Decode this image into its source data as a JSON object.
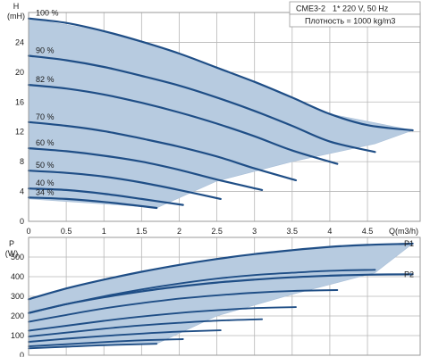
{
  "info": {
    "model": "CME3-2",
    "supply": "1* 220 V, 50 Hz",
    "density": "Плотность = 1000 kg/m3"
  },
  "colors": {
    "curve": "#1f4e86",
    "area": "#b7cbe0",
    "grid": "#b7b7b7"
  },
  "chart_data": [
    {
      "type": "line",
      "title": "",
      "ylabel": "H\n(mH)",
      "xlabel": "Q(m3/h)",
      "xlim": [
        0,
        5.2
      ],
      "ylim": [
        0,
        28
      ],
      "x_ticks": [
        "0",
        "0.5",
        "1",
        "1.5",
        "2",
        "2.5",
        "3",
        "3.5",
        "4",
        "4.5"
      ],
      "y_ticks": [
        "0",
        "4",
        "8",
        "12",
        "16",
        "20",
        "24"
      ],
      "grid": true,
      "series": [
        {
          "name": "100 %",
          "x": [
            0,
            0.5,
            1,
            1.5,
            2,
            2.5,
            3,
            3.5,
            4,
            4.5,
            5.1
          ],
          "y": [
            27.2,
            26.6,
            25.5,
            24.1,
            22.5,
            20.6,
            18.7,
            16.6,
            14.4,
            12.9,
            12.2
          ]
        },
        {
          "name": "90 %",
          "x": [
            0,
            0.5,
            1,
            1.5,
            2,
            2.5,
            3,
            3.5,
            4,
            4.6
          ],
          "y": [
            22.2,
            21.6,
            20.7,
            19.5,
            18.2,
            16.6,
            14.8,
            12.8,
            10.7,
            9.3
          ]
        },
        {
          "name": "82 %",
          "x": [
            0,
            0.5,
            1,
            1.5,
            2,
            2.5,
            3,
            3.5,
            4.1
          ],
          "y": [
            18.3,
            17.8,
            17.0,
            15.9,
            14.6,
            13.1,
            11.4,
            9.5,
            7.7
          ]
        },
        {
          "name": "70 %",
          "x": [
            0,
            0.5,
            1,
            1.5,
            2,
            2.5,
            3,
            3.55
          ],
          "y": [
            13.3,
            12.8,
            12.1,
            11.1,
            10.0,
            8.7,
            7.1,
            5.5
          ]
        },
        {
          "name": "60 %",
          "x": [
            0,
            0.5,
            1,
            1.5,
            2,
            2.5,
            3.1
          ],
          "y": [
            9.8,
            9.4,
            8.8,
            8.0,
            6.9,
            5.6,
            4.2
          ]
        },
        {
          "name": "50 %",
          "x": [
            0,
            0.5,
            1,
            1.5,
            2,
            2.55
          ],
          "y": [
            6.8,
            6.5,
            6.0,
            5.2,
            4.2,
            3.0
          ]
        },
        {
          "name": "40 %",
          "x": [
            0,
            0.5,
            1,
            1.5,
            2.05
          ],
          "y": [
            4.4,
            4.2,
            3.7,
            3.0,
            2.2
          ]
        },
        {
          "name": "34 %",
          "x": [
            0,
            0.5,
            1,
            1.7
          ],
          "y": [
            3.2,
            3.0,
            2.6,
            1.8
          ]
        }
      ],
      "envelope": {
        "x": [
          0,
          1,
          2,
          3,
          4,
          5.1,
          4.6,
          3.5,
          2.5,
          1.7,
          1.2,
          0.6,
          0
        ],
        "y": [
          27.2,
          25.5,
          22.5,
          18.7,
          14.4,
          12.2,
          10.4,
          8.0,
          5.4,
          1.8,
          2.2,
          2.6,
          3.0
        ]
      }
    },
    {
      "type": "line",
      "title": "",
      "ylabel": "P\n(W)",
      "xlim": [
        0,
        5.2
      ],
      "ylim": [
        0,
        600
      ],
      "y_ticks": [
        "0",
        "100",
        "200",
        "300",
        "400",
        "500"
      ],
      "grid": true,
      "series_labels": [
        "P1",
        "P2"
      ],
      "series": [
        {
          "name": "P1",
          "x": [
            0,
            0.5,
            1,
            1.5,
            2,
            2.5,
            3,
            3.5,
            4,
            4.5,
            5.1
          ],
          "y": [
            285,
            340,
            385,
            425,
            460,
            490,
            515,
            535,
            552,
            562,
            568
          ]
        },
        {
          "name": "P2",
          "x": [
            0,
            0.5,
            1,
            1.5,
            2,
            2.5,
            3,
            3.5,
            4,
            4.5,
            5.1
          ],
          "y": [
            215,
            260,
            295,
            325,
            350,
            370,
            385,
            397,
            405,
            410,
            412
          ]
        },
        {
          "x": [
            0,
            0.5,
            1,
            1.5,
            2,
            2.5,
            3,
            3.5,
            4,
            4.6
          ],
          "y": [
            215,
            260,
            300,
            335,
            365,
            390,
            408,
            420,
            430,
            435
          ]
        },
        {
          "x": [
            0,
            0.5,
            1,
            1.5,
            2,
            2.5,
            3,
            3.5,
            4.1
          ],
          "y": [
            170,
            205,
            238,
            265,
            288,
            305,
            318,
            327,
            332
          ]
        },
        {
          "x": [
            0,
            0.5,
            1,
            1.5,
            2,
            2.5,
            3,
            3.55
          ],
          "y": [
            125,
            150,
            175,
            197,
            215,
            229,
            240,
            245
          ]
        },
        {
          "x": [
            0,
            0.5,
            1,
            1.5,
            2,
            2.5,
            3.1
          ],
          "y": [
            95,
            115,
            135,
            152,
            165,
            176,
            183
          ]
        },
        {
          "x": [
            0,
            0.5,
            1,
            1.5,
            2,
            2.55
          ],
          "y": [
            68,
            84,
            98,
            110,
            120,
            127
          ]
        },
        {
          "x": [
            0,
            0.5,
            1,
            1.5,
            2.05
          ],
          "y": [
            45,
            56,
            67,
            76,
            82
          ]
        },
        {
          "x": [
            0,
            0.5,
            1,
            1.7
          ],
          "y": [
            35,
            43,
            51,
            58
          ]
        }
      ],
      "envelope": {
        "x": [
          0,
          1,
          2,
          3,
          4,
          5.1,
          4.6,
          3.5,
          2.5,
          1.7,
          1.2,
          0.6,
          0
        ],
        "y": [
          285,
          385,
          460,
          515,
          552,
          568,
          420,
          310,
          200,
          58,
          52,
          45,
          35
        ]
      }
    }
  ]
}
